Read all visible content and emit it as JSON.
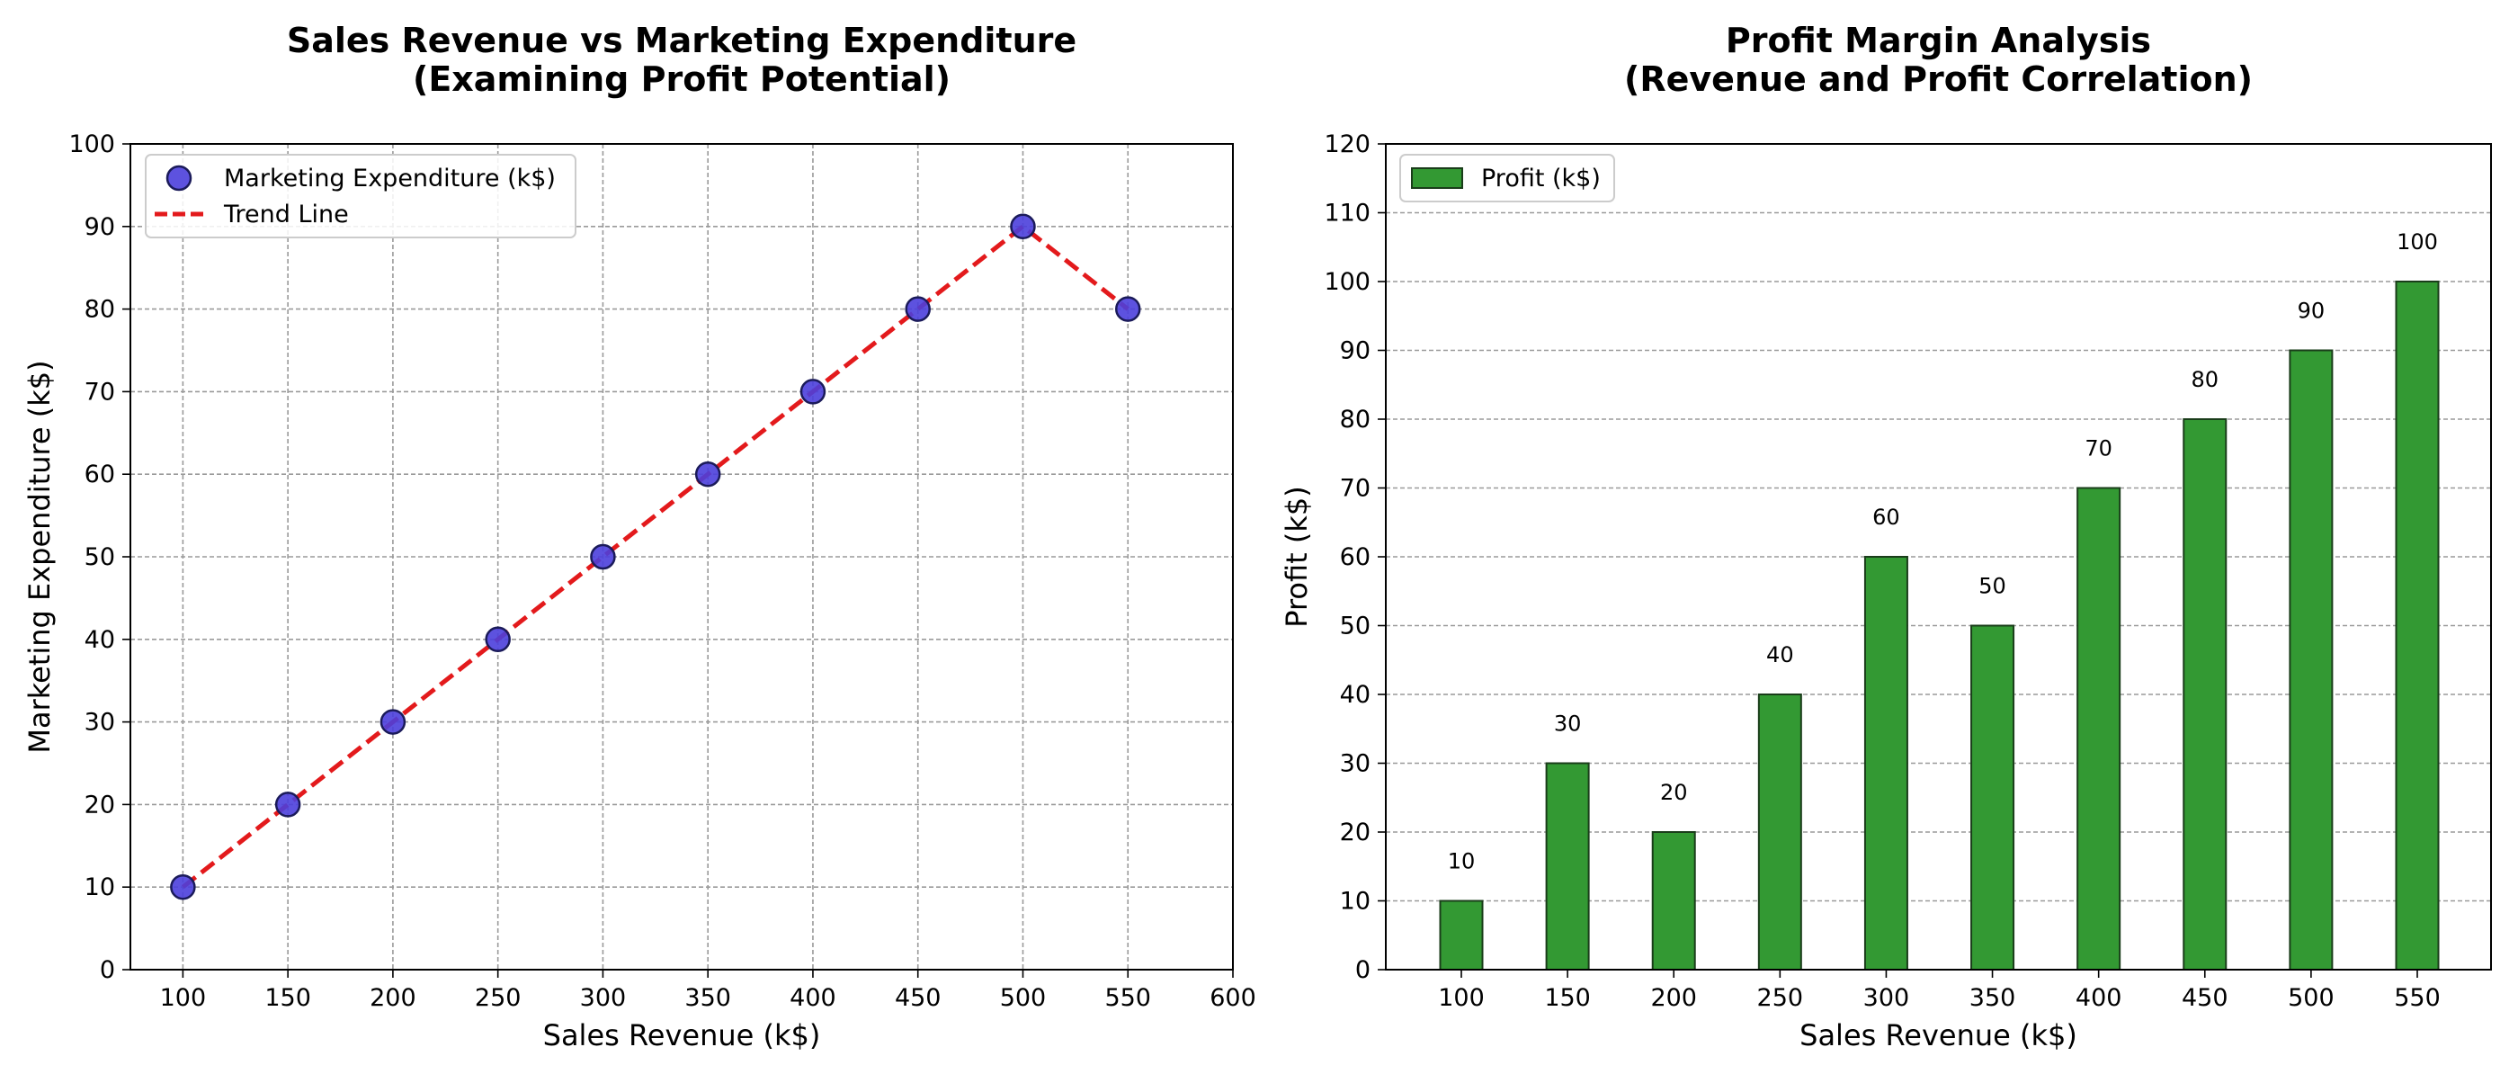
{
  "chart_data": [
    {
      "type": "scatter",
      "title": "Sales Revenue vs Marketing Expenditure\n(Examining Profit Potential)",
      "xlabel": "Sales Revenue (k$)",
      "ylabel": "Marketing Expenditure (k$)",
      "x": [
        100,
        150,
        200,
        250,
        300,
        350,
        400,
        450,
        500,
        550
      ],
      "series": [
        {
          "name": "Marketing Expenditure (k$)",
          "kind": "scatter",
          "values": [
            10,
            20,
            30,
            40,
            50,
            60,
            70,
            80,
            90,
            80
          ],
          "color": "#4b3fdc"
        },
        {
          "name": "Trend Line",
          "kind": "line",
          "style": "dashed",
          "values": [
            10,
            20,
            30,
            40,
            50,
            60,
            70,
            80,
            90,
            80
          ],
          "color": "#e31a1c"
        }
      ],
      "xlim": [
        75,
        600
      ],
      "ylim": [
        0,
        100
      ],
      "xticks": [
        100,
        150,
        200,
        250,
        300,
        350,
        400,
        450,
        500,
        550,
        600
      ],
      "yticks": [
        0,
        10,
        20,
        30,
        40,
        50,
        60,
        70,
        80,
        90,
        100
      ],
      "grid": true,
      "legend_position": "top-left"
    },
    {
      "type": "bar",
      "title": "Profit Margin Analysis\n(Revenue and Profit Correlation)",
      "xlabel": "Sales Revenue (k$)",
      "ylabel": "Profit (k$)",
      "categories": [
        "100",
        "150",
        "200",
        "250",
        "300",
        "350",
        "400",
        "450",
        "500",
        "550"
      ],
      "series": [
        {
          "name": "Profit (k$)",
          "values": [
            10,
            30,
            20,
            40,
            60,
            50,
            70,
            80,
            90,
            100
          ],
          "color": "#339933"
        }
      ],
      "data_labels": [
        "10",
        "30",
        "20",
        "40",
        "60",
        "50",
        "70",
        "80",
        "90",
        "100"
      ],
      "ylim": [
        0,
        120
      ],
      "yticks": [
        0,
        10,
        20,
        30,
        40,
        50,
        60,
        70,
        80,
        90,
        100,
        110,
        120
      ],
      "grid": true,
      "grid_axis": "y",
      "legend_position": "top-left"
    }
  ]
}
